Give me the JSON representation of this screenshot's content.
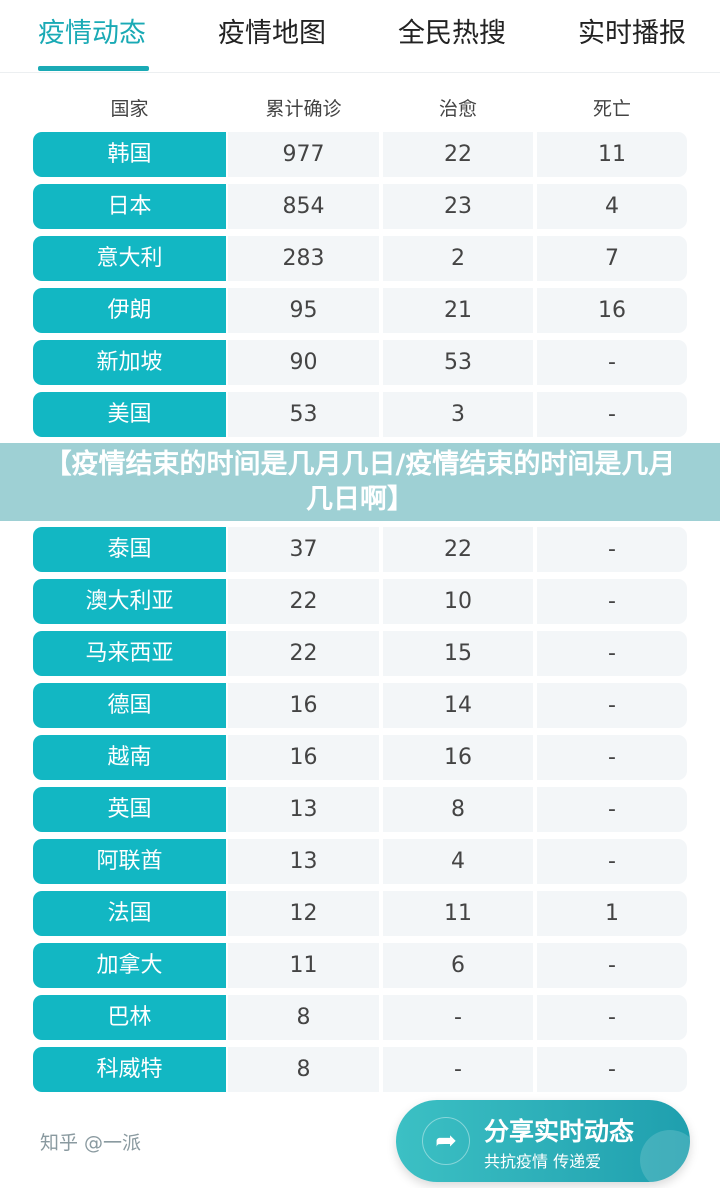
{
  "tabs": [
    {
      "label": "疫情动态",
      "active": true
    },
    {
      "label": "疫情地图",
      "active": false
    },
    {
      "label": "全民热搜",
      "active": false
    },
    {
      "label": "实时播报",
      "active": false
    }
  ],
  "table": {
    "headers": [
      "国家",
      "累计确诊",
      "治愈",
      "死亡"
    ],
    "rows": [
      [
        "韩国",
        "977",
        "22",
        "11"
      ],
      [
        "日本",
        "854",
        "23",
        "4"
      ],
      [
        "意大利",
        "283",
        "2",
        "7"
      ],
      [
        "伊朗",
        "95",
        "21",
        "16"
      ],
      [
        "新加坡",
        "90",
        "53",
        "-"
      ],
      [
        "美国",
        "53",
        "3",
        "-"
      ],
      [
        "泰国",
        "37",
        "22",
        "-"
      ],
      [
        "澳大利亚",
        "22",
        "10",
        "-"
      ],
      [
        "马来西亚",
        "22",
        "15",
        "-"
      ],
      [
        "德国",
        "16",
        "14",
        "-"
      ],
      [
        "越南",
        "16",
        "16",
        "-"
      ],
      [
        "英国",
        "13",
        "8",
        "-"
      ],
      [
        "阿联酋",
        "13",
        "4",
        "-"
      ],
      [
        "法国",
        "12",
        "11",
        "1"
      ],
      [
        "加拿大",
        "11",
        "6",
        "-"
      ],
      [
        "巴林",
        "8",
        "-",
        "-"
      ],
      [
        "科威特",
        "8",
        "-",
        "-"
      ]
    ]
  },
  "banner": {
    "title": "【疫情结束的时间是几月几日/疫情结束的时间是几月几日啊】"
  },
  "share": {
    "title": "分享实时动态",
    "subtitle": "共抗疫情 传递爱",
    "icon": "share-arrow-icon"
  },
  "watermark": "知乎 @一派",
  "colors": {
    "accent": "#12b7c3",
    "cell_bg": "#f3f6f8"
  }
}
